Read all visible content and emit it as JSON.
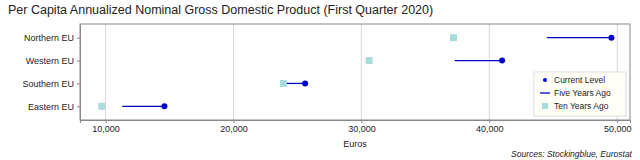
{
  "chart_data": {
    "type": "dot",
    "orientation": "horizontal",
    "title": "Per Capita Annualized Nominal Gross Domestic Product (First Quarter 2020)",
    "x_label": "Euros",
    "source": "Sources: Stockingblue, Eurostat",
    "categories": [
      "Northern EU",
      "Western EU",
      "Southern EU",
      "Eastern EU"
    ],
    "series": [
      {
        "name": "Current Level",
        "color": "#0000cc",
        "marker": "circle",
        "values": [
          49550,
          41000,
          25600,
          14600
        ]
      },
      {
        "name": "Five Years Ago",
        "color": "#0000cc",
        "marker": "line",
        "values": [
          44500,
          37300,
          23800,
          11300
        ]
      },
      {
        "name": "Ten Years Ago",
        "color": "#a8dcdc",
        "marker": "square",
        "values": [
          37200,
          30600,
          23900,
          9700
        ]
      }
    ],
    "xlim": [
      8000,
      51000
    ],
    "xticks": [
      {
        "value": 10000,
        "label": "10,000"
      },
      {
        "value": 20000,
        "label": "20,000"
      },
      {
        "value": 30000,
        "label": "30,000"
      },
      {
        "value": 40000,
        "label": "40,000"
      },
      {
        "value": 50000,
        "label": "50,000"
      }
    ],
    "grid": true,
    "legend": "lower right"
  }
}
